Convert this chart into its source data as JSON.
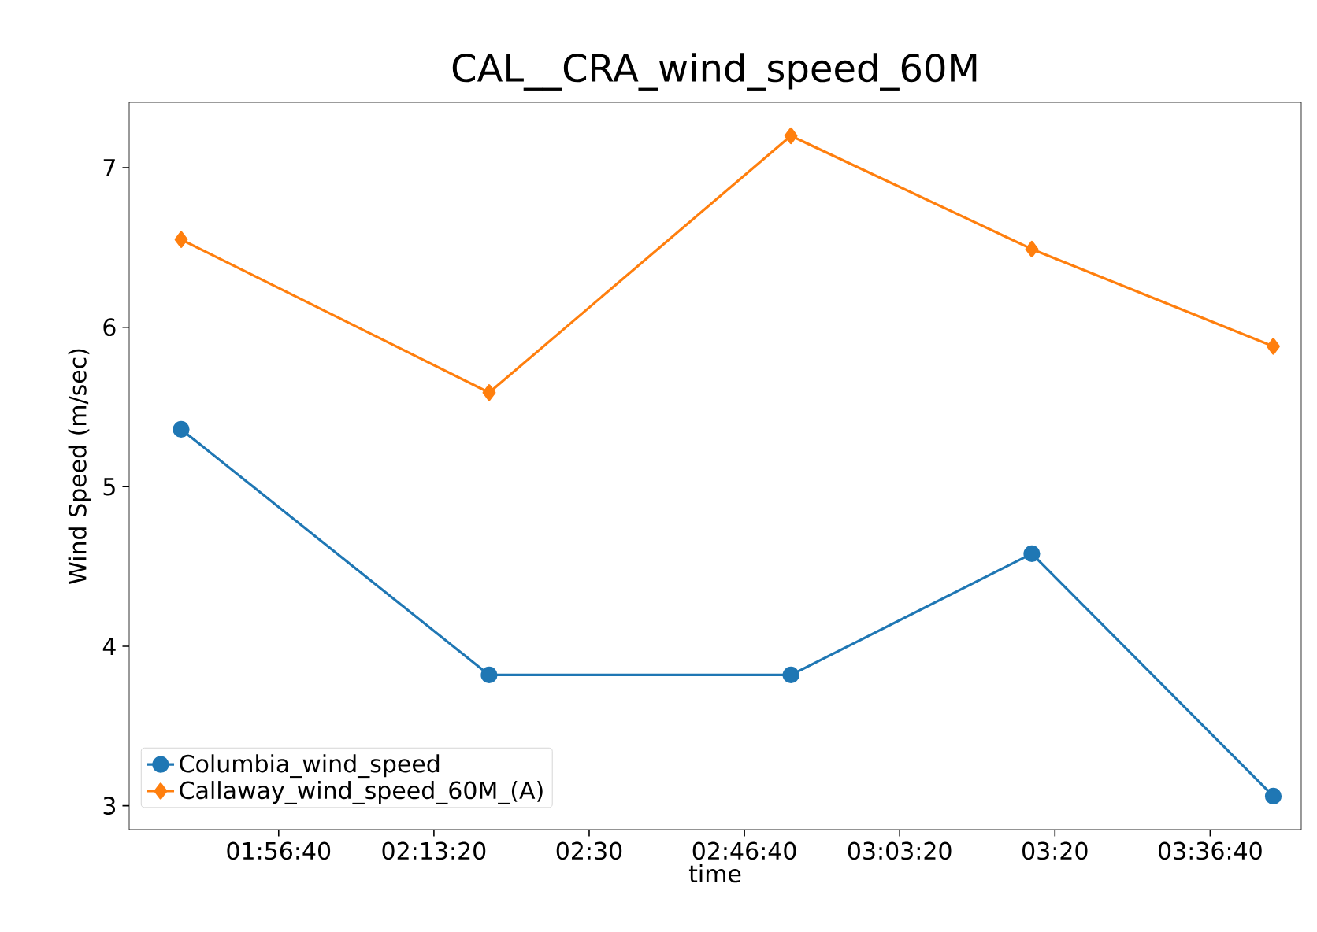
{
  "chart_data": {
    "type": "line",
    "title": "CAL__CRA_wind_speed_60M",
    "xlabel": "time",
    "ylabel": "Wind Speed (m/sec)",
    "x": [
      1.77,
      2.321,
      2.861,
      3.292,
      3.724
    ],
    "series": [
      {
        "name": "Columbia_wind_speed",
        "color": "#1f77b4",
        "marker": "circle",
        "values": [
          5.36,
          3.82,
          3.82,
          4.58,
          3.06
        ]
      },
      {
        "name": "Callaway_wind_speed_60M_(A)",
        "color": "#ff7f0e",
        "marker": "diamond",
        "values": [
          6.55,
          5.59,
          7.2,
          6.49,
          5.88
        ]
      }
    ],
    "xlim": [
      1.677,
      3.774
    ],
    "ylim": [
      2.85,
      7.41
    ],
    "xticks": [
      {
        "value": 1.944444,
        "label": "01:56:40"
      },
      {
        "value": 2.222222,
        "label": "02:13:20"
      },
      {
        "value": 2.5,
        "label": "02:30"
      },
      {
        "value": 2.777778,
        "label": "02:46:40"
      },
      {
        "value": 3.055556,
        "label": "03:03:20"
      },
      {
        "value": 3.333333,
        "label": "03:20"
      },
      {
        "value": 3.611111,
        "label": "03:36:40"
      }
    ],
    "yticks": [
      3,
      4,
      5,
      6,
      7
    ],
    "grid": false,
    "legend": "bottom left",
    "line_style": "solid"
  }
}
